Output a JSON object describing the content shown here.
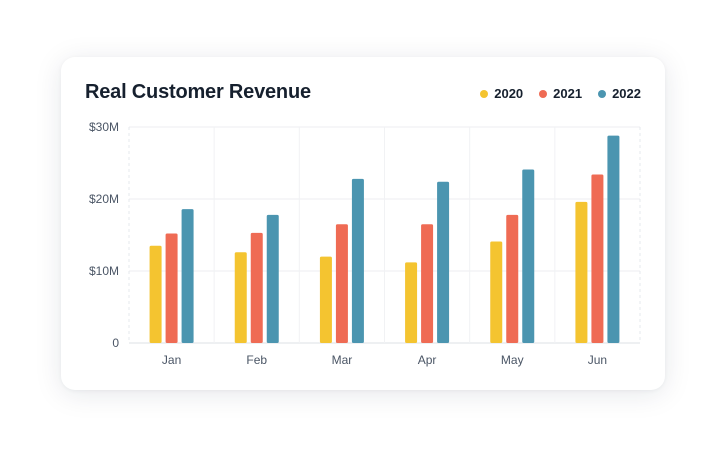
{
  "chart_data": {
    "type": "bar",
    "title": "Real Customer Revenue",
    "categories": [
      "Jan",
      "Feb",
      "Mar",
      "Apr",
      "May",
      "Jun"
    ],
    "series": [
      {
        "name": "2020",
        "color": "#f4c430",
        "values": [
          13.5,
          12.6,
          12.0,
          11.2,
          14.1,
          19.6
        ]
      },
      {
        "name": "2021",
        "color": "#ef6b54",
        "values": [
          15.2,
          15.3,
          16.5,
          16.5,
          17.8,
          23.4
        ]
      },
      {
        "name": "2022",
        "color": "#4b95b0",
        "values": [
          18.6,
          17.8,
          22.8,
          22.4,
          24.1,
          28.8
        ]
      }
    ],
    "yticks": [
      0,
      10,
      20,
      30
    ],
    "ytick_labels": [
      "0",
      "$10M",
      "$20M",
      "$30M"
    ],
    "ylim": [
      0,
      30
    ],
    "xlabel": "",
    "ylabel": "",
    "grid": true,
    "legend_position": "top-right"
  }
}
